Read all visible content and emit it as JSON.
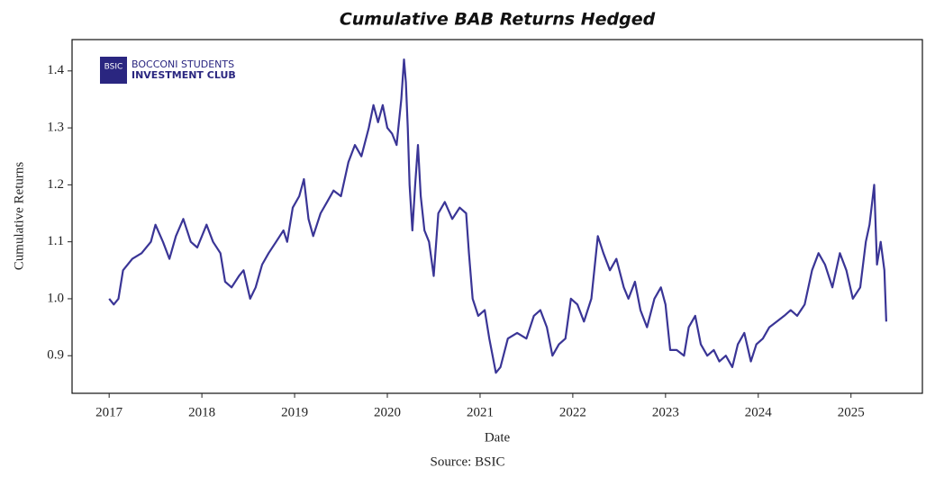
{
  "chart_data": {
    "type": "line",
    "title": "Cumulative BAB Returns Hedged",
    "xlabel": "Date",
    "ylabel": "Cumulative Returns",
    "source": "Source: BSIC",
    "logo": {
      "mark": "BSIC",
      "line1": "BOCCONI STUDENTS",
      "line2": "INVESTMENT CLUB"
    },
    "xlim": [
      2016.6,
      2025.77
    ],
    "ylim": [
      0.834,
      1.455
    ],
    "xticks": [
      2017,
      2018,
      2019,
      2020,
      2021,
      2022,
      2023,
      2024,
      2025
    ],
    "yticks": [
      0.9,
      {
        "value": 1,
        "label": "1.0"
      },
      1.1,
      1.2,
      1.3,
      1.4
    ],
    "series": [
      {
        "name": "Cumulative BAB Returns Hedged",
        "color": "#3a3596",
        "x": [
          2017.0,
          2017.05,
          2017.1,
          2017.15,
          2017.25,
          2017.35,
          2017.45,
          2017.5,
          2017.58,
          2017.65,
          2017.72,
          2017.8,
          2017.88,
          2017.95,
          2018.05,
          2018.12,
          2018.2,
          2018.25,
          2018.32,
          2018.4,
          2018.45,
          2018.52,
          2018.58,
          2018.65,
          2018.72,
          2018.8,
          2018.88,
          2018.92,
          2018.98,
          2019.05,
          2019.1,
          2019.15,
          2019.2,
          2019.28,
          2019.35,
          2019.42,
          2019.5,
          2019.58,
          2019.65,
          2019.72,
          2019.8,
          2019.85,
          2019.9,
          2019.95,
          2020.0,
          2020.05,
          2020.1,
          2020.15,
          2020.18,
          2020.2,
          2020.22,
          2020.24,
          2020.27,
          2020.3,
          2020.33,
          2020.36,
          2020.4,
          2020.45,
          2020.5,
          2020.55,
          2020.62,
          2020.7,
          2020.78,
          2020.85,
          2020.88,
          2020.92,
          2020.98,
          2021.05,
          2021.1,
          2021.17,
          2021.22,
          2021.3,
          2021.4,
          2021.5,
          2021.58,
          2021.65,
          2021.72,
          2021.78,
          2021.85,
          2021.92,
          2021.98,
          2022.05,
          2022.12,
          2022.2,
          2022.27,
          2022.33,
          2022.4,
          2022.47,
          2022.55,
          2022.6,
          2022.67,
          2022.73,
          2022.8,
          2022.88,
          2022.95,
          2023.0,
          2023.05,
          2023.12,
          2023.2,
          2023.25,
          2023.32,
          2023.38,
          2023.45,
          2023.52,
          2023.58,
          2023.65,
          2023.72,
          2023.78,
          2023.85,
          2023.92,
          2023.98,
          2024.05,
          2024.12,
          2024.2,
          2024.28,
          2024.35,
          2024.42,
          2024.5,
          2024.58,
          2024.65,
          2024.72,
          2024.8,
          2024.88,
          2024.95,
          2025.02,
          2025.1,
          2025.16,
          2025.2,
          2025.25,
          2025.28,
          2025.32,
          2025.36,
          2025.38
        ],
        "values": [
          1.0,
          0.99,
          1.0,
          1.05,
          1.07,
          1.08,
          1.1,
          1.13,
          1.1,
          1.07,
          1.11,
          1.14,
          1.1,
          1.09,
          1.13,
          1.1,
          1.08,
          1.03,
          1.02,
          1.04,
          1.05,
          1.0,
          1.02,
          1.06,
          1.08,
          1.1,
          1.12,
          1.1,
          1.16,
          1.18,
          1.21,
          1.14,
          1.11,
          1.15,
          1.17,
          1.19,
          1.18,
          1.24,
          1.27,
          1.25,
          1.3,
          1.34,
          1.31,
          1.34,
          1.3,
          1.29,
          1.27,
          1.35,
          1.42,
          1.38,
          1.3,
          1.2,
          1.12,
          1.2,
          1.27,
          1.18,
          1.12,
          1.1,
          1.04,
          1.15,
          1.17,
          1.14,
          1.16,
          1.15,
          1.08,
          1.0,
          0.97,
          0.98,
          0.93,
          0.87,
          0.88,
          0.93,
          0.94,
          0.93,
          0.97,
          0.98,
          0.95,
          0.9,
          0.92,
          0.93,
          1.0,
          0.99,
          0.96,
          1.0,
          1.11,
          1.08,
          1.05,
          1.07,
          1.02,
          1.0,
          1.03,
          0.98,
          0.95,
          1.0,
          1.02,
          0.99,
          0.91,
          0.91,
          0.9,
          0.95,
          0.97,
          0.92,
          0.9,
          0.91,
          0.89,
          0.9,
          0.88,
          0.92,
          0.94,
          0.89,
          0.92,
          0.93,
          0.95,
          0.96,
          0.97,
          0.98,
          0.97,
          0.99,
          1.05,
          1.08,
          1.06,
          1.02,
          1.08,
          1.05,
          1.0,
          1.02,
          1.1,
          1.13,
          1.2,
          1.06,
          1.1,
          1.05,
          0.96
        ]
      }
    ]
  }
}
